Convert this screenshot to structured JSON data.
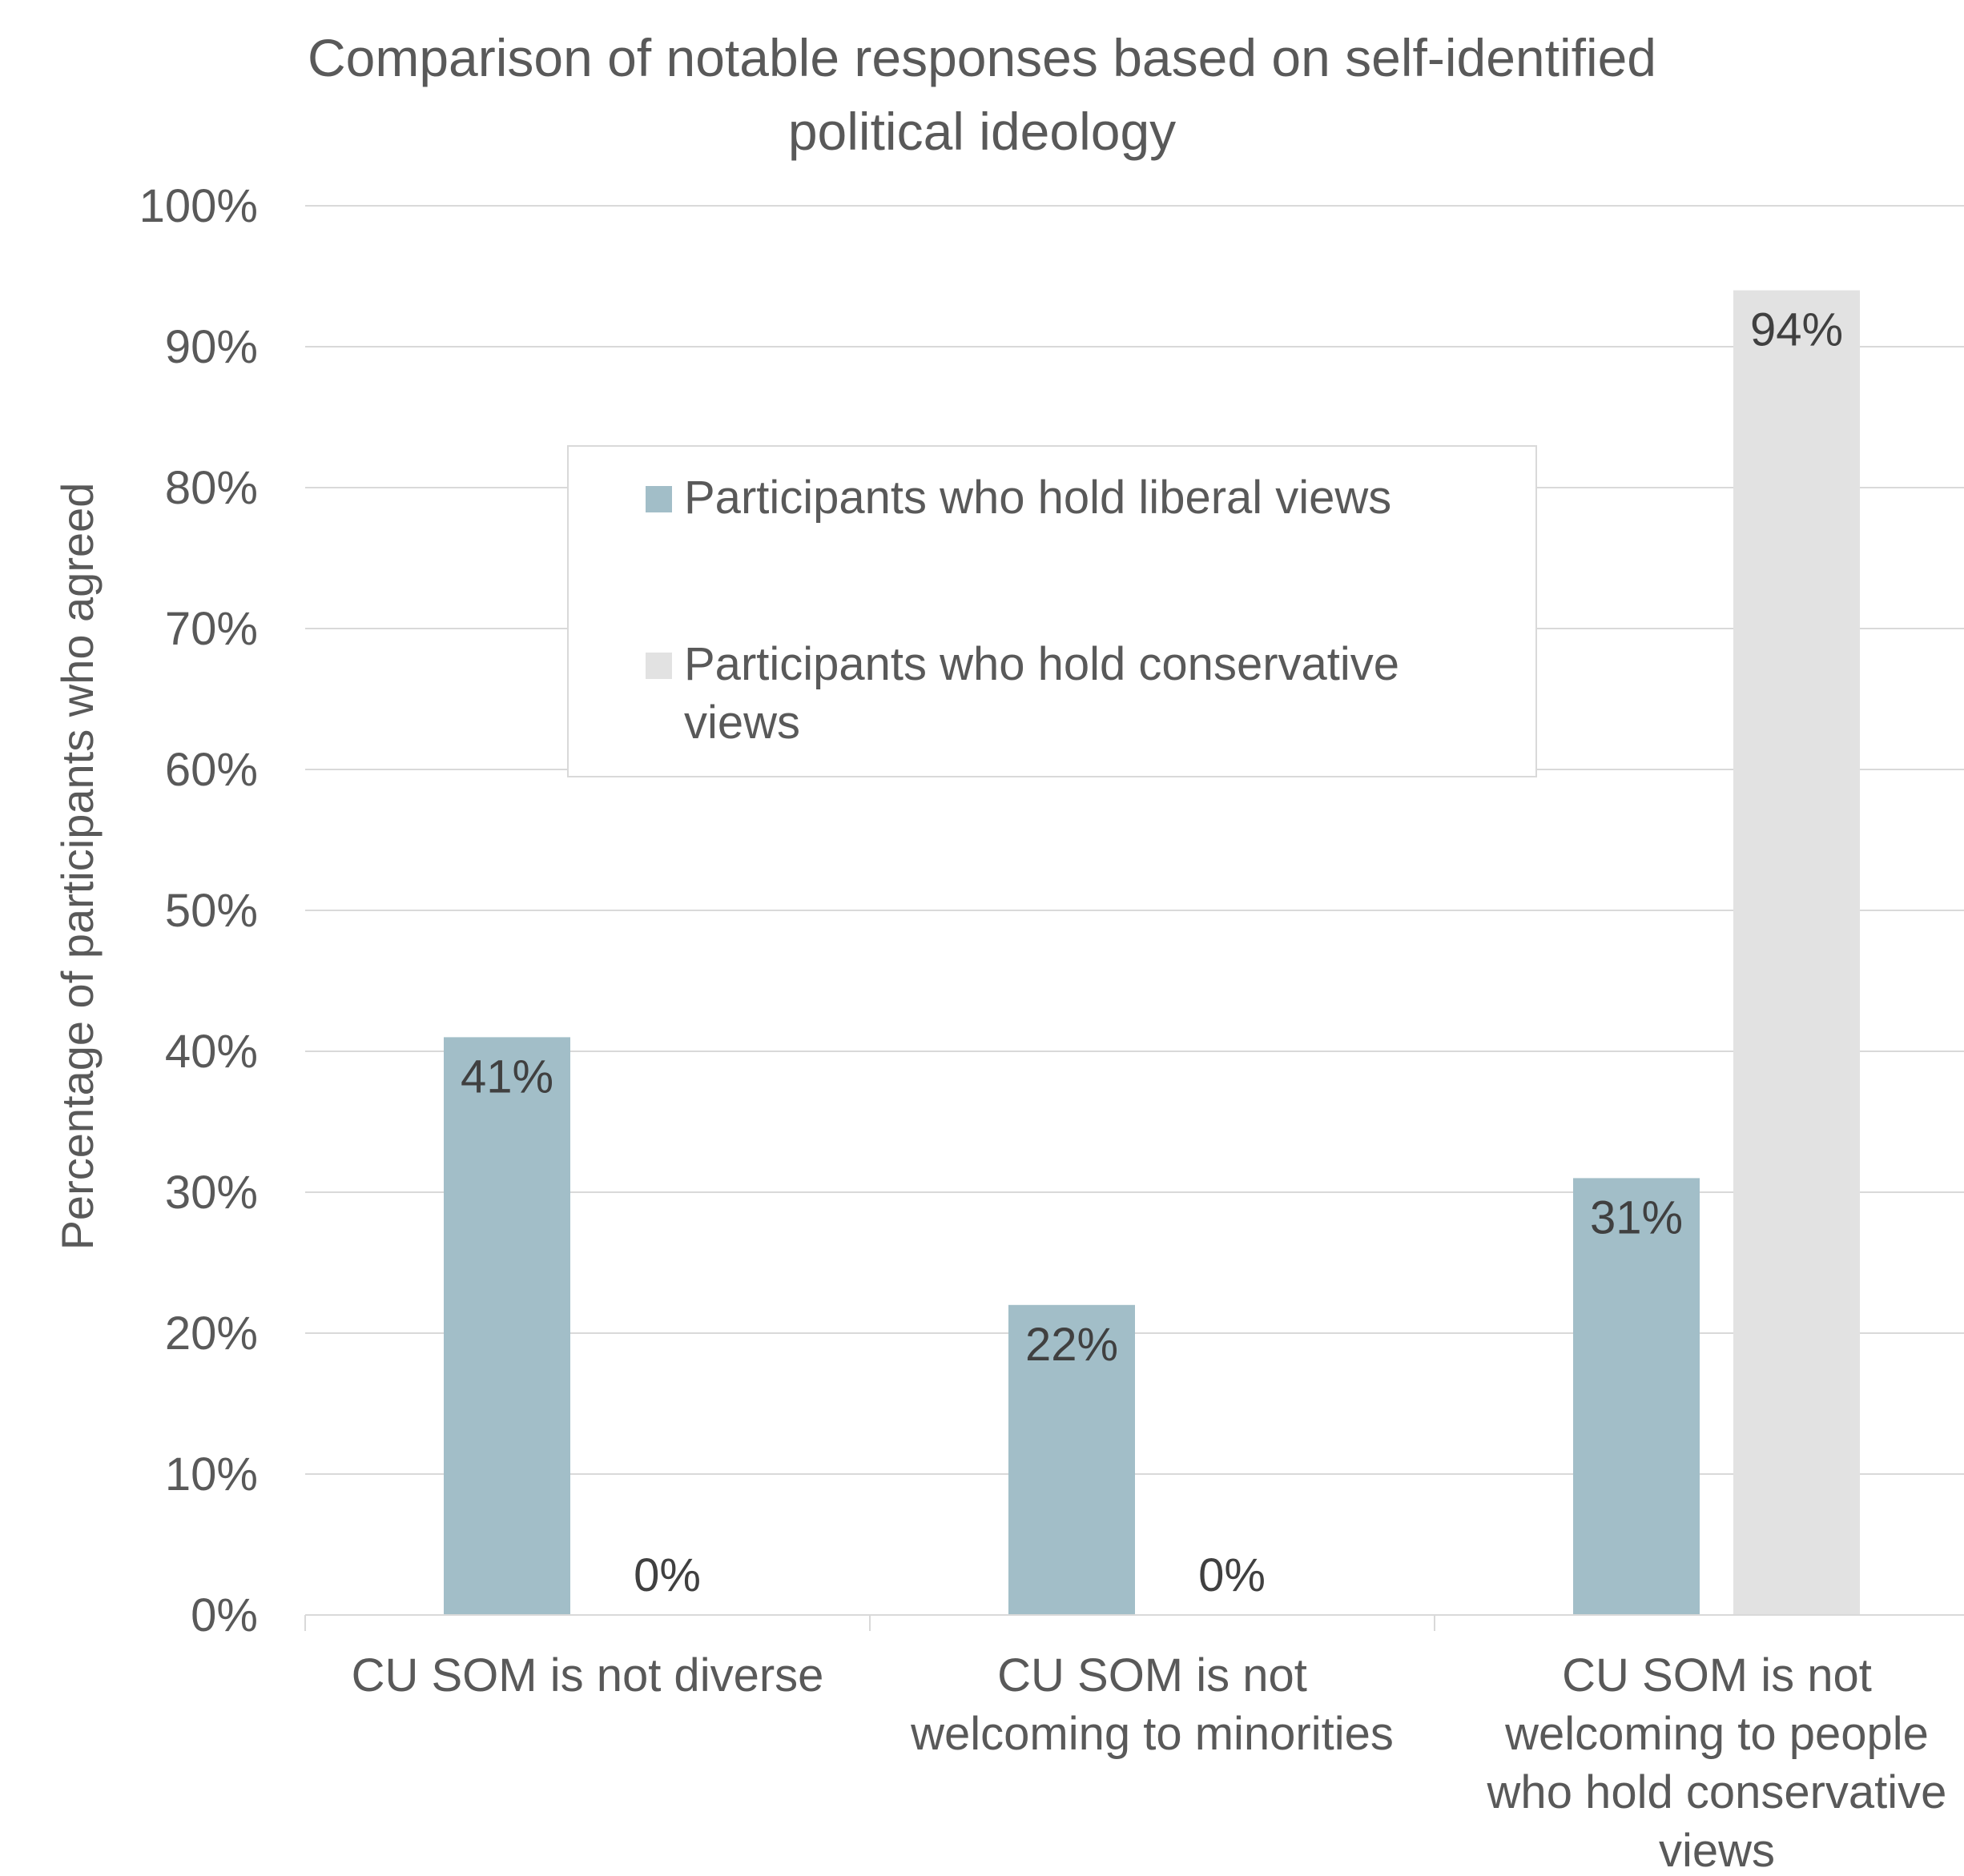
{
  "chart_data": {
    "type": "bar",
    "title_lines": [
      "Comparison of notable responses based on self-identified",
      "political ideology"
    ],
    "ylabel": "Percentage of participants who agreed",
    "xlabel": "",
    "ylim": [
      0,
      100
    ],
    "yticks": [
      "0%",
      "10%",
      "20%",
      "30%",
      "40%",
      "50%",
      "60%",
      "70%",
      "80%",
      "90%",
      "100%"
    ],
    "grid": true,
    "legend_placement": "center",
    "categories": [
      [
        "CU SOM is not diverse"
      ],
      [
        "CU SOM is not",
        "welcoming to minorities"
      ],
      [
        "CU SOM is not",
        "welcoming to people",
        "who hold conservative",
        "views"
      ]
    ],
    "series": [
      {
        "name_lines": [
          "Participants who hold liberal views"
        ],
        "values": [
          41,
          22,
          31
        ],
        "labels": [
          "41%",
          "22%",
          "31%"
        ],
        "color": "#a2bec8"
      },
      {
        "name_lines": [
          "Participants who hold conservative",
          "views"
        ],
        "values": [
          0,
          0,
          94
        ],
        "labels": [
          "0%",
          "0%",
          "94%"
        ],
        "color": "#e2e2e2"
      }
    ],
    "colors": {
      "text": "#595959",
      "data_label": "#404040",
      "grid": "#d9d9d9",
      "axis": "#d9d9d9",
      "legend_border": "#d9d9d9"
    }
  }
}
